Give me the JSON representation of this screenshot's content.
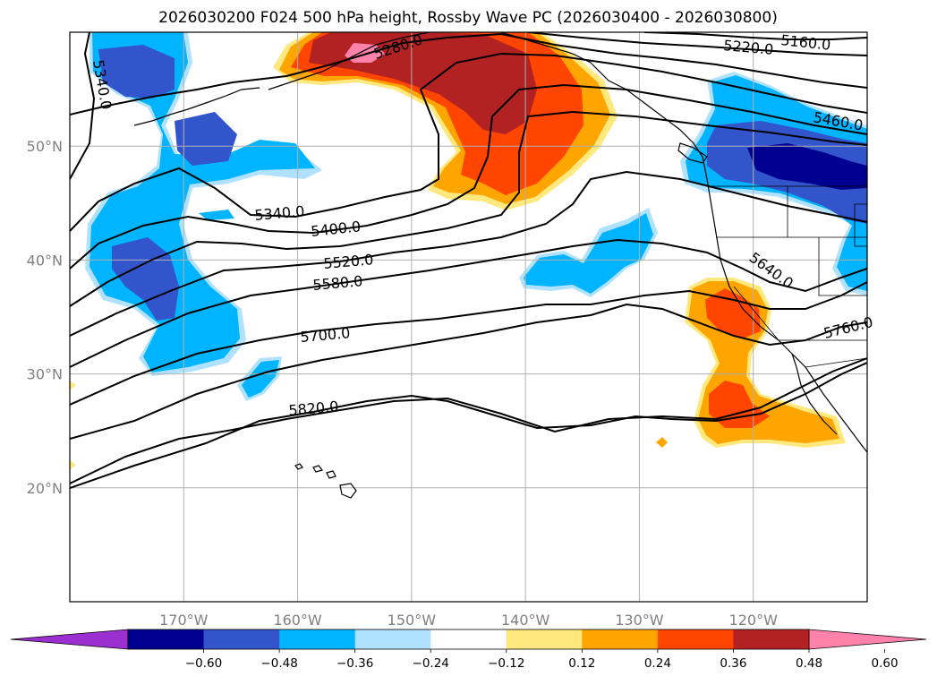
{
  "title": "2026030200 F024 500 hPa height, Rossby Wave PC (2026030400 - 2026030800)",
  "map": {
    "lon_range": [
      -180,
      -110
    ],
    "lat_range": [
      10,
      60
    ],
    "lon_ticks": [
      {
        "value": -170,
        "label": "170°W"
      },
      {
        "value": -160,
        "label": "160°W"
      },
      {
        "value": -150,
        "label": "150°W"
      },
      {
        "value": -140,
        "label": "140°W"
      },
      {
        "value": -130,
        "label": "130°W"
      },
      {
        "value": -120,
        "label": "120°W"
      }
    ],
    "lat_ticks": [
      {
        "value": 20,
        "label": "20°N"
      },
      {
        "value": 30,
        "label": "30°N"
      },
      {
        "value": 40,
        "label": "40°N"
      },
      {
        "value": 50,
        "label": "50°N"
      }
    ],
    "grid": true
  },
  "contours": [
    {
      "level": 5160,
      "label": "5160.0"
    },
    {
      "level": 5220,
      "label": "5220.0"
    },
    {
      "level": 5280,
      "label": "5280.0"
    },
    {
      "level": 5340,
      "label": "5340.0"
    },
    {
      "level": 5400,
      "label": "5400.0"
    },
    {
      "level": 5460,
      "label": "5460.0"
    },
    {
      "level": 5520,
      "label": "5520.0"
    },
    {
      "level": 5580,
      "label": "5580.0"
    },
    {
      "level": 5640,
      "label": "5640.0"
    },
    {
      "level": 5700,
      "label": "5700.0"
    },
    {
      "level": 5760,
      "label": "5760.0"
    },
    {
      "level": 5820,
      "label": "5820.0"
    }
  ],
  "colorbar": {
    "colors": [
      "#9b30d0",
      "#000090",
      "#3355cc",
      "#00b4ff",
      "#b0e2ff",
      "#ffffff",
      "#ffe97f",
      "#ffa500",
      "#ff4500",
      "#b22222",
      "#ff82ab"
    ],
    "ticks": [
      -0.6,
      -0.48,
      -0.36,
      -0.24,
      -0.12,
      0.12,
      0.24,
      0.36,
      0.48,
      0.6
    ],
    "tick_labels": [
      "−0.60",
      "−0.48",
      "−0.36",
      "−0.24",
      "−0.12",
      "0.12",
      "0.24",
      "0.36",
      "0.48",
      "0.60"
    ],
    "extend": "both"
  },
  "colors": {
    "neg_light": "#b0e2ff",
    "neg_1": "#00b4ff",
    "neg_2": "#3355cc",
    "neg_3": "#000090",
    "pos_light": "#ffe97f",
    "pos_1": "#ffa500",
    "pos_2": "#ff4500",
    "pos_3": "#b22222",
    "pos_4": "#ff82ab"
  }
}
